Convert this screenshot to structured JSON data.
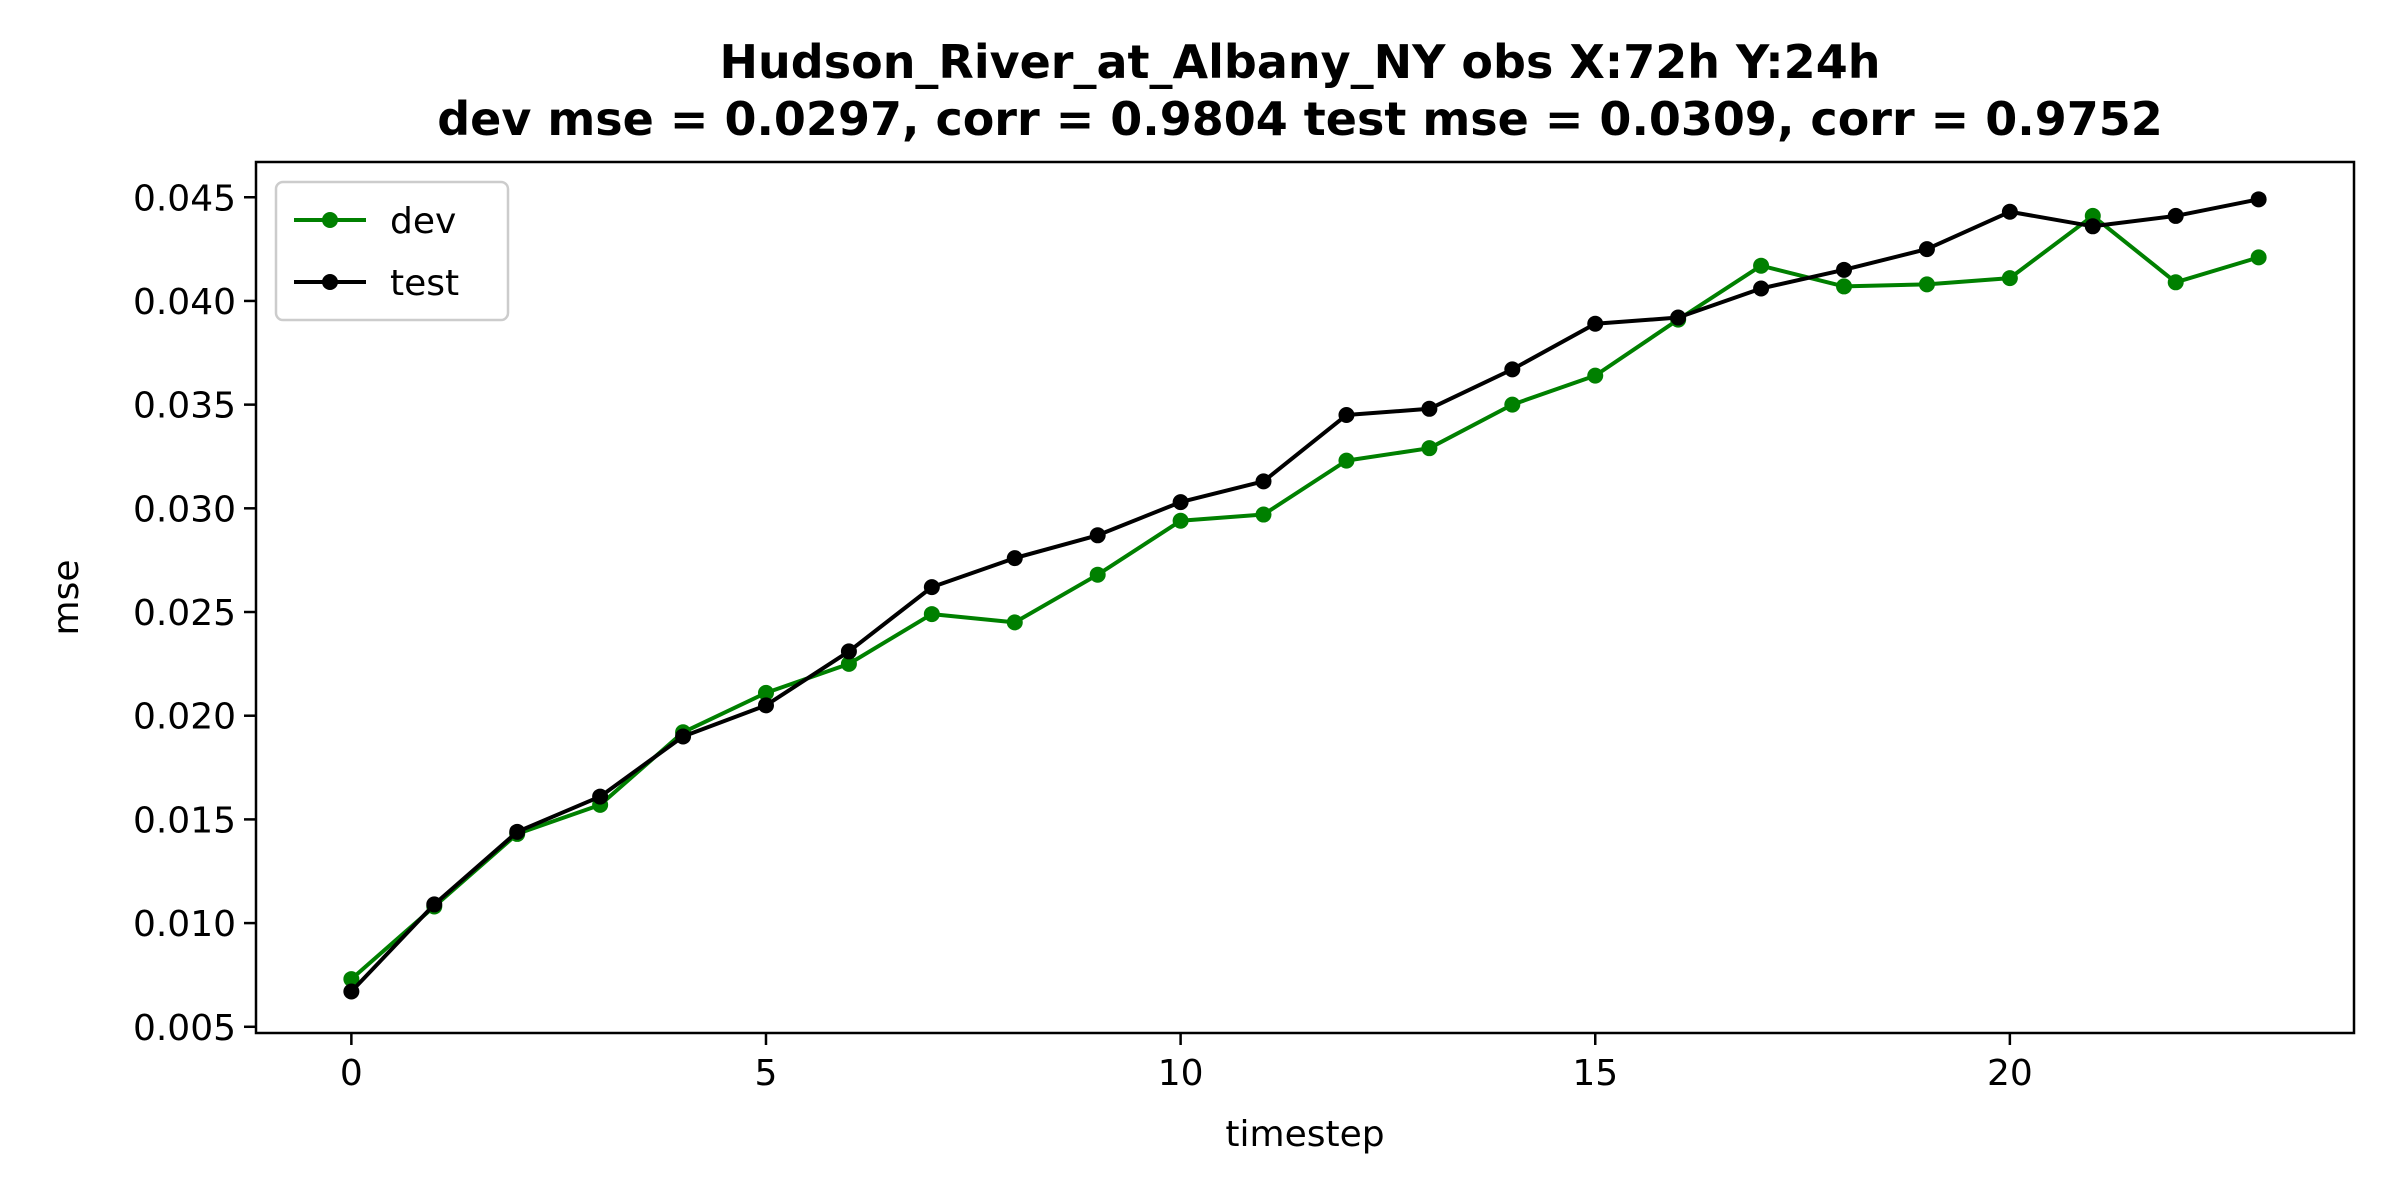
{
  "chart_data": {
    "type": "line",
    "title": [
      "Hudson_River_at_Albany_NY   obs   X:72h   Y:24h",
      "dev mse = 0.0297, corr = 0.9804   test mse = 0.0309, corr = 0.9752"
    ],
    "xlabel": "timestep",
    "ylabel": "mse",
    "x": [
      0,
      1,
      2,
      3,
      4,
      5,
      6,
      7,
      8,
      9,
      10,
      11,
      12,
      13,
      14,
      15,
      16,
      17,
      18,
      19,
      20,
      21,
      22,
      23
    ],
    "xlim": [
      -1.15,
      24.15
    ],
    "ylim": [
      0.0047,
      0.0467
    ],
    "xticks": [
      0,
      5,
      10,
      15,
      20
    ],
    "yticks": [
      0.005,
      0.01,
      0.015,
      0.02,
      0.025,
      0.03,
      0.035,
      0.04,
      0.045
    ],
    "xtick_labels": [
      "0",
      "5",
      "10",
      "15",
      "20"
    ],
    "ytick_labels": [
      "0.005",
      "0.010",
      "0.015",
      "0.020",
      "0.025",
      "0.030",
      "0.035",
      "0.040",
      "0.045"
    ],
    "grid": false,
    "legend_position": "upper-left",
    "series": [
      {
        "name": "dev",
        "color": "#008000",
        "values": [
          0.0073,
          0.0108,
          0.0143,
          0.0157,
          0.0192,
          0.0211,
          0.0225,
          0.0249,
          0.0245,
          0.0268,
          0.0294,
          0.0297,
          0.0323,
          0.0329,
          0.035,
          0.0364,
          0.0391,
          0.0417,
          0.0407,
          0.0408,
          0.0411,
          0.0441,
          0.0409,
          0.0421
        ]
      },
      {
        "name": "test",
        "color": "#000000",
        "values": [
          0.0067,
          0.0109,
          0.0144,
          0.0161,
          0.019,
          0.0205,
          0.0231,
          0.0262,
          0.0276,
          0.0287,
          0.0303,
          0.0313,
          0.0345,
          0.0348,
          0.0367,
          0.0389,
          0.0392,
          0.0406,
          0.0415,
          0.0425,
          0.0443,
          0.0436,
          0.0441,
          0.0449
        ]
      }
    ]
  }
}
